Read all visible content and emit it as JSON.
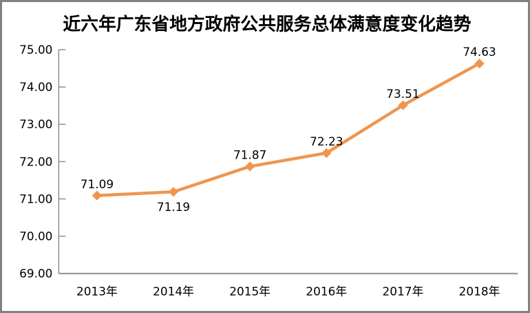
{
  "chart_data": {
    "type": "line",
    "title": "近六年广东省地方政府公共服务总体满意度变化趋势",
    "categories": [
      "2013年",
      "2014年",
      "2015年",
      "2016年",
      "2017年",
      "2018年"
    ],
    "values": [
      71.09,
      71.19,
      71.87,
      72.23,
      73.51,
      74.63
    ],
    "data_labels": [
      "71.09",
      "71.19",
      "71.87",
      "72.23",
      "73.51",
      "74.63"
    ],
    "data_label_positions": [
      "above",
      "below",
      "above",
      "above",
      "above",
      "above"
    ],
    "y_ticks": [
      "75.00",
      "74.00",
      "73.00",
      "72.00",
      "71.00",
      "70.00",
      "69.00"
    ],
    "y_tick_values": [
      75,
      74,
      73,
      72,
      71,
      70,
      69
    ],
    "ylim": [
      69,
      75
    ],
    "xlabel": "",
    "ylabel": "",
    "grid": false,
    "legend": "none",
    "marker": "diamond",
    "colors": {
      "series_line": "#F0954D",
      "marker_fill": "#F0954D",
      "axis_line": "#8C8C8C",
      "tick_mark": "#8C8C8C",
      "frame_border": "#808080",
      "text": "#000000",
      "background": "#FFFFFF"
    }
  }
}
